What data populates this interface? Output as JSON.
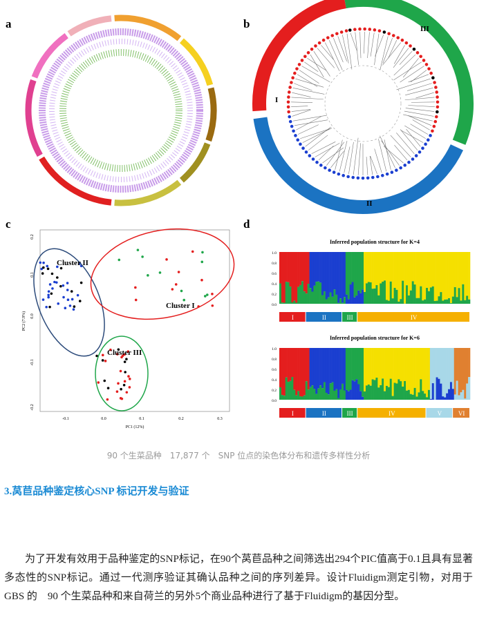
{
  "figure": {
    "panel_labels": [
      "a",
      "b",
      "c",
      "d"
    ],
    "panel_b": {
      "clusters": [
        "III",
        "II",
        "I"
      ]
    },
    "panel_c": {
      "clusters": [
        "Cluster II",
        "Cluster I",
        "Cluster III"
      ],
      "x_axis_label": "PC1 (12%)",
      "y_axis_label": "PC2 (7.9%)",
      "xticks": [
        "-0.1",
        "0.0",
        "0.1",
        "0.2",
        "0.3"
      ],
      "yticks": [
        "0.2",
        "0.1",
        "0.0",
        "-0.1",
        "-0.2"
      ]
    },
    "panel_d": {
      "titles": [
        "Inferred population structure for K=4",
        "Inferred population structure for K=6"
      ],
      "yticks": [
        "1.0",
        "0.8",
        "0.6",
        "0.4",
        "0.2",
        "0.0"
      ],
      "groups_k4": [
        "I",
        "II",
        "III",
        "IV"
      ],
      "groups_k6": [
        "I",
        "II",
        "III",
        "IV",
        "V",
        "VI"
      ]
    }
  },
  "caption": "90 个生菜品种　17,877 个　SNP 位点的染色体分布和遗传多样性分析",
  "heading": "3.莴苣品种鉴定核心SNP 标记开发与验证",
  "paragraph": "为了开发有效用于品种鉴定的SNP标记，在90个莴苣品种之间筛选出294个PIC值高于0.1且具有显著多态性的SNP标记。通过一代测序验证其确认品种之间的序列差异。设计Fluidigm测定引物，对用于 GBS 的　90 个生菜品种和来自荷兰的另外5个商业品种进行了基于Fluidigm的基因分型。"
}
